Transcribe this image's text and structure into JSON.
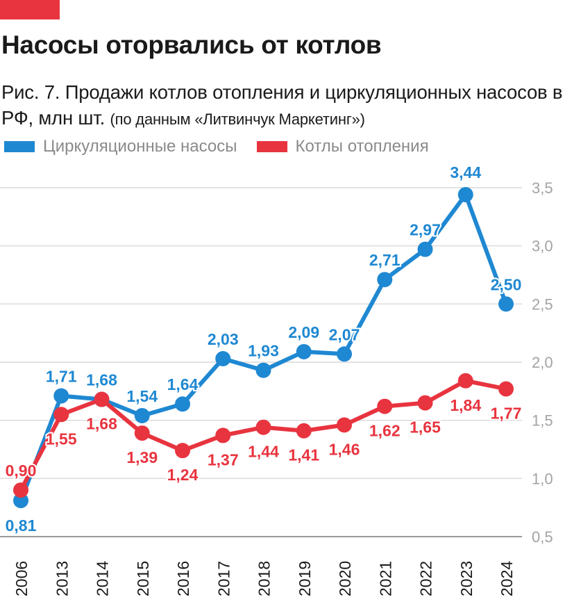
{
  "header": {
    "title": "Насосы оторвались от котлов",
    "subtitle": "Рис. 7. Продажи котлов отопления и циркуляционных насосов в РФ, млн шт.",
    "source": "(по данным «Литвинчук Маркетинг»)"
  },
  "colors": {
    "accent": "#e8343f",
    "pumps": "#1f88d2",
    "boilers": "#e8343f",
    "grid": "#d9d9d9",
    "axis_text": "#a3a3a3"
  },
  "legend": {
    "pumps_label": "Циркуляционные насосы",
    "boilers_label": "Котлы отопления"
  },
  "chart_data": {
    "type": "line",
    "x": [
      "2006",
      "2013",
      "2014",
      "2015",
      "2016",
      "2017",
      "2018",
      "2019",
      "2020",
      "2021",
      "2022",
      "2023",
      "2024"
    ],
    "series": [
      {
        "name": "Циркуляционные насосы",
        "color": "#1f88d2",
        "values": [
          0.81,
          1.71,
          1.68,
          1.54,
          1.64,
          2.03,
          1.93,
          2.09,
          2.07,
          2.71,
          2.97,
          3.44,
          2.5
        ],
        "labels": [
          "0,81",
          "1,71",
          "1,68",
          "1,54",
          "1,64",
          "2,03",
          "1,93",
          "2,09",
          "2,07",
          "2,71",
          "2,97",
          "3,44",
          "2,50"
        ]
      },
      {
        "name": "Котлы отопления",
        "color": "#e8343f",
        "values": [
          0.9,
          1.55,
          1.68,
          1.39,
          1.24,
          1.37,
          1.44,
          1.41,
          1.46,
          1.62,
          1.65,
          1.84,
          1.77
        ],
        "labels": [
          "0,90",
          "1,55",
          "1,68",
          "1,39",
          "1,24",
          "1,37",
          "1,44",
          "1,41",
          "1,46",
          "1,62",
          "1,65",
          "1,84",
          "1,77"
        ]
      }
    ],
    "ylim": [
      0.5,
      3.5
    ],
    "yticks": [
      0.5,
      1.0,
      1.5,
      2.0,
      2.5,
      3.0,
      3.5
    ],
    "ytick_labels": [
      "0,5",
      "1,0",
      "1,5",
      "2,0",
      "2,5",
      "3,0",
      "3,5"
    ],
    "y_axis_side": "right",
    "grid": true,
    "legend_position": "top-left"
  }
}
